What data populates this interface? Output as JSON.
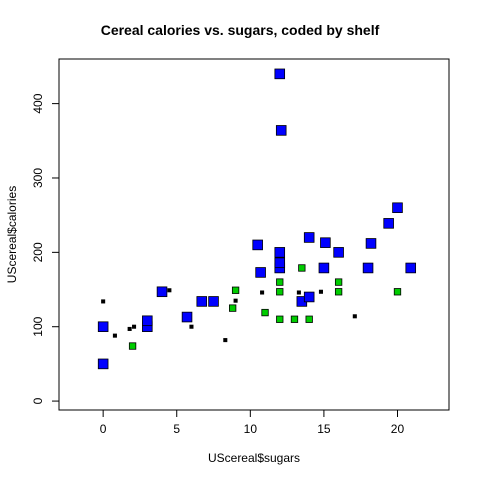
{
  "chart_data": {
    "type": "scatter",
    "title": "Cereal calories vs. sugars, coded by shelf",
    "xlabel": "UScereal$sugars",
    "ylabel": "UScereal$calories",
    "xlim": [
      -3,
      23.5
    ],
    "ylim": [
      -12,
      460
    ],
    "x_ticks": [
      0,
      5,
      10,
      15,
      20
    ],
    "y_ticks": [
      0,
      100,
      200,
      300,
      400
    ],
    "grid": false,
    "legend": "none",
    "colors": {
      "shelf1": "#000000",
      "shelf2": "#00cc00",
      "shelf3": "#0000ff",
      "outline": "#000000"
    },
    "series": [
      {
        "shelf": 1,
        "marker_scale": 0.5,
        "points": [
          {
            "x": 0,
            "y": 134
          },
          {
            "x": 0.8,
            "y": 88
          },
          {
            "x": 1.8,
            "y": 97
          },
          {
            "x": 2.1,
            "y": 100
          },
          {
            "x": 4.5,
            "y": 149
          },
          {
            "x": 6,
            "y": 100
          },
          {
            "x": 8.3,
            "y": 82
          },
          {
            "x": 9,
            "y": 135
          },
          {
            "x": 10.8,
            "y": 146
          },
          {
            "x": 13.3,
            "y": 146
          },
          {
            "x": 14.8,
            "y": 147
          },
          {
            "x": 17.1,
            "y": 114
          }
        ]
      },
      {
        "shelf": 2,
        "marker_scale": 1,
        "points": [
          {
            "x": 2,
            "y": 74
          },
          {
            "x": 8.8,
            "y": 125
          },
          {
            "x": 9,
            "y": 149
          },
          {
            "x": 11,
            "y": 119
          },
          {
            "x": 12,
            "y": 110
          },
          {
            "x": 12,
            "y": 147
          },
          {
            "x": 12,
            "y": 160
          },
          {
            "x": 13,
            "y": 110
          },
          {
            "x": 13.5,
            "y": 179
          },
          {
            "x": 14,
            "y": 110
          },
          {
            "x": 16,
            "y": 147
          },
          {
            "x": 16,
            "y": 160
          },
          {
            "x": 20,
            "y": 147
          }
        ]
      },
      {
        "shelf": 3,
        "marker_scale": 1.5,
        "points": [
          {
            "x": 0,
            "y": 50
          },
          {
            "x": 0,
            "y": 100
          },
          {
            "x": 3,
            "y": 100
          },
          {
            "x": 3,
            "y": 108
          },
          {
            "x": 4,
            "y": 147
          },
          {
            "x": 5.7,
            "y": 113
          },
          {
            "x": 6.7,
            "y": 134
          },
          {
            "x": 7.5,
            "y": 134
          },
          {
            "x": 10.5,
            "y": 210
          },
          {
            "x": 10.7,
            "y": 173
          },
          {
            "x": 12,
            "y": 179
          },
          {
            "x": 12,
            "y": 186
          },
          {
            "x": 12,
            "y": 200
          },
          {
            "x": 12,
            "y": 440
          },
          {
            "x": 12.1,
            "y": 364
          },
          {
            "x": 13.5,
            "y": 134
          },
          {
            "x": 14,
            "y": 140
          },
          {
            "x": 14,
            "y": 220
          },
          {
            "x": 15,
            "y": 179
          },
          {
            "x": 15.1,
            "y": 213
          },
          {
            "x": 16,
            "y": 200
          },
          {
            "x": 18,
            "y": 179
          },
          {
            "x": 18.2,
            "y": 212
          },
          {
            "x": 19.4,
            "y": 239
          },
          {
            "x": 20,
            "y": 260
          },
          {
            "x": 20.9,
            "y": 179
          }
        ]
      }
    ]
  }
}
